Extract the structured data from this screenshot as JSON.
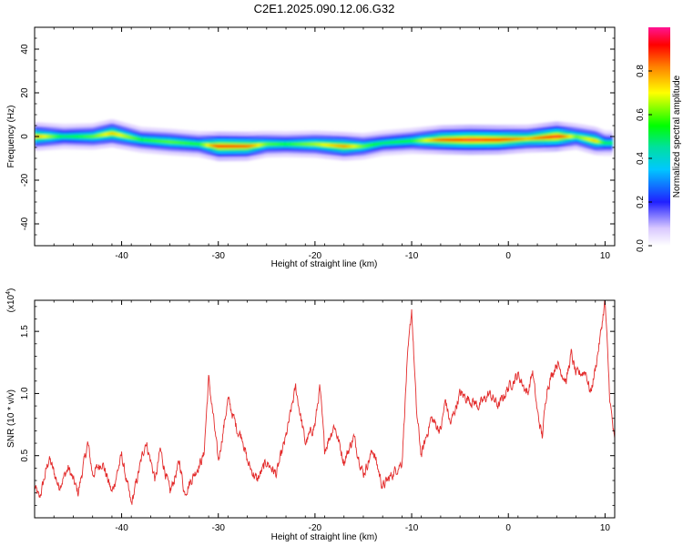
{
  "title": "C2E1.2025.090.12.06.G32",
  "chart_data": [
    {
      "type": "heatmap",
      "xlabel": "Height of straight line (km)",
      "ylabel": "Frequency (Hz)",
      "xlim": [
        -49,
        11
      ],
      "ylim": [
        -50,
        50
      ],
      "xticks": [
        -40,
        -30,
        -20,
        -10,
        0,
        10
      ],
      "yticks": [
        -40,
        -20,
        0,
        20,
        40
      ],
      "colorbar": {
        "label": "Normalized spectral amplitude",
        "range": [
          0,
          1
        ],
        "ticks": [
          0.0,
          0.2,
          0.4,
          0.6,
          0.8
        ],
        "tick_labels": [
          "0.0",
          "0.2",
          "0.4",
          "0.6",
          "0.8"
        ]
      },
      "ridge": {
        "x": [
          -49,
          -46,
          -43,
          -41,
          -38,
          -35,
          -32,
          -30,
          -27,
          -25,
          -23,
          -20,
          -17,
          -15,
          -13,
          -10,
          -7,
          -4,
          -1,
          2,
          5,
          7,
          9,
          10
        ],
        "frequency": [
          0,
          0,
          0,
          1.5,
          -1.5,
          -2.5,
          -3.5,
          -4.5,
          -4.5,
          -3.5,
          -3.5,
          -3.5,
          -4.5,
          -4.5,
          -3,
          -2,
          -1.5,
          -1.5,
          -1.5,
          -1,
          0,
          0,
          -2,
          -3
        ],
        "amplitude": [
          0.8,
          0.5,
          0.6,
          0.75,
          0.55,
          0.6,
          0.55,
          0.9,
          0.85,
          0.6,
          0.55,
          0.65,
          0.8,
          0.6,
          0.5,
          0.55,
          0.85,
          0.95,
          0.9,
          0.75,
          0.95,
          0.6,
          0.75,
          0.5
        ]
      }
    },
    {
      "type": "line",
      "xlabel": "Height of straight line (km)",
      "ylabel": "SNR (10 * v/v)",
      "y_multiplier": "(x10^4)",
      "y_multiplier_base": "(x10",
      "y_multiplier_exp": "4",
      "xlim": [
        -49,
        11
      ],
      "ylim": [
        0,
        1.75
      ],
      "xticks": [
        -40,
        -30,
        -20,
        -10,
        0,
        10
      ],
      "yticks": [
        0.5,
        1.0,
        1.5
      ],
      "ytick_labels": [
        "0.5",
        "1.0",
        "1.5"
      ],
      "color": "#e32b2b",
      "anchors": {
        "x": [
          -49,
          -48.5,
          -47.5,
          -46.5,
          -45.5,
          -44.5,
          -43.5,
          -43,
          -42,
          -41,
          -40,
          -39,
          -38,
          -37.5,
          -36.5,
          -36,
          -35,
          -34,
          -33.5,
          -32.5,
          -31.5,
          -31,
          -30.5,
          -30,
          -29,
          -28,
          -27.5,
          -27,
          -26,
          -25,
          -24,
          -23,
          -22,
          -21,
          -20,
          -19.5,
          -19,
          -18,
          -17,
          -16,
          -15,
          -14,
          -13,
          -12,
          -11,
          -10.5,
          -10,
          -9.5,
          -9,
          -8,
          -7,
          -6.5,
          -6,
          -5,
          -4,
          -3,
          -2,
          -1,
          0,
          1,
          2,
          2.5,
          3,
          3.5,
          4,
          5,
          6,
          6.5,
          7,
          8,
          8.5,
          9,
          9.5,
          10,
          10.5,
          11
        ],
        "y": [
          0.25,
          0.15,
          0.48,
          0.25,
          0.4,
          0.2,
          0.6,
          0.35,
          0.45,
          0.2,
          0.5,
          0.1,
          0.45,
          0.62,
          0.3,
          0.55,
          0.2,
          0.45,
          0.2,
          0.35,
          0.5,
          1.12,
          0.8,
          0.45,
          0.95,
          0.7,
          0.65,
          0.45,
          0.3,
          0.45,
          0.35,
          0.65,
          1.05,
          0.6,
          0.75,
          1.05,
          0.55,
          0.75,
          0.45,
          0.65,
          0.35,
          0.55,
          0.25,
          0.35,
          0.45,
          1.2,
          1.68,
          0.85,
          0.5,
          0.8,
          0.7,
          0.95,
          0.75,
          1.0,
          0.95,
          0.9,
          1.0,
          0.9,
          1.05,
          1.15,
          1.0,
          1.18,
          0.85,
          0.65,
          1.05,
          1.25,
          1.1,
          1.32,
          1.15,
          1.18,
          1.0,
          1.2,
          1.45,
          1.75,
          0.95,
          0.6
        ]
      }
    }
  ]
}
